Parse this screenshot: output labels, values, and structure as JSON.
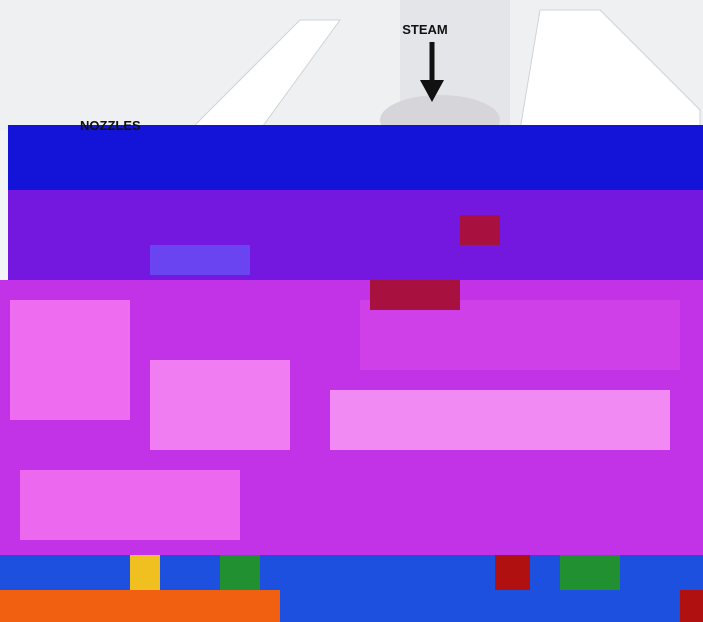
{
  "labels": {
    "steam": "STEAM",
    "nozzles": "NOZZLES"
  }
}
